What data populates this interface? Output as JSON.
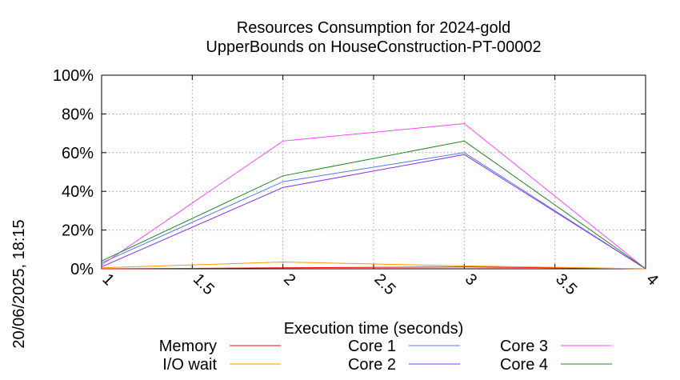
{
  "chart_data": {
    "type": "line",
    "title": "Resources Consumption for 2024-gold",
    "subtitle": "UpperBounds on HouseConstruction-PT-00002",
    "xlabel": "Execution time (seconds)",
    "ylabel": "",
    "side_label": "20/06/2025, 18:15",
    "xlim": [
      1,
      4
    ],
    "ylim": [
      0,
      100
    ],
    "grid": true,
    "legend_position": "bottom",
    "x_ticks": [
      "1",
      "1.5",
      "2",
      "2.5",
      "3",
      "3.5",
      "4"
    ],
    "y_ticks": [
      "0%",
      "20%",
      "40%",
      "60%",
      "80%",
      "100%"
    ],
    "x": [
      1,
      2,
      3,
      4
    ],
    "series": [
      {
        "name": "Memory",
        "color": "#ff0000",
        "values": [
          0,
          0.5,
          1,
          0
        ]
      },
      {
        "name": "I/O wait",
        "color": "#ff9900",
        "values": [
          0.5,
          3.5,
          1.5,
          0
        ]
      },
      {
        "name": "Core 1",
        "color": "#5577ee",
        "values": [
          3,
          45,
          60,
          0
        ]
      },
      {
        "name": "Core 2",
        "color": "#8833ee",
        "values": [
          1,
          42,
          59,
          0
        ]
      },
      {
        "name": "Core 3",
        "color": "#ff44ff",
        "values": [
          2,
          66,
          75,
          0
        ]
      },
      {
        "name": "Core 4",
        "color": "#228822",
        "values": [
          4,
          48,
          66,
          0
        ]
      }
    ]
  }
}
